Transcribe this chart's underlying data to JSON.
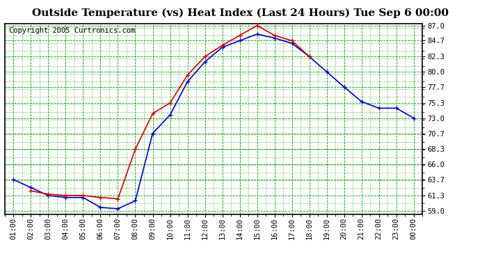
{
  "title": "Outside Temperature (vs) Heat Index (Last 24 Hours) Tue Sep 6 00:00",
  "copyright": "Copyright 2005 Curtronics.com",
  "x_labels": [
    "01:00",
    "02:00",
    "03:00",
    "04:00",
    "05:00",
    "06:00",
    "07:00",
    "08:00",
    "09:00",
    "10:00",
    "11:00",
    "12:00",
    "13:00",
    "14:00",
    "15:00",
    "16:00",
    "17:00",
    "18:00",
    "19:00",
    "20:00",
    "21:00",
    "22:00",
    "23:00",
    "00:00"
  ],
  "blue_y": [
    63.7,
    62.5,
    61.3,
    61.0,
    61.0,
    59.5,
    59.3,
    60.5,
    70.7,
    73.5,
    78.5,
    81.5,
    83.7,
    84.7,
    85.7,
    85.1,
    84.3,
    82.3,
    80.0,
    77.7,
    75.5,
    74.5,
    74.5,
    73.0
  ],
  "red_y": [
    null,
    62.0,
    61.5,
    61.3,
    61.3,
    61.0,
    60.8,
    68.3,
    73.7,
    75.3,
    79.5,
    82.3,
    84.0,
    85.5,
    87.0,
    85.5,
    84.7,
    82.3,
    null,
    null,
    null,
    null,
    null,
    null
  ],
  "blue_color": "#0000bb",
  "red_color": "#cc0000",
  "background_color": "#ffffff",
  "plot_bg_color": "#ffffff",
  "grid_color_major": "#009900",
  "grid_color_minor": "#009900",
  "ylim": [
    59.0,
    87.0
  ],
  "yticks": [
    59.0,
    61.3,
    63.7,
    66.0,
    68.3,
    70.7,
    73.0,
    75.3,
    77.7,
    80.0,
    82.3,
    84.7,
    87.0
  ],
  "title_fontsize": 11,
  "copyright_fontsize": 7.5,
  "tick_fontsize": 7.5,
  "marker_size": 4,
  "line_width": 1.2
}
